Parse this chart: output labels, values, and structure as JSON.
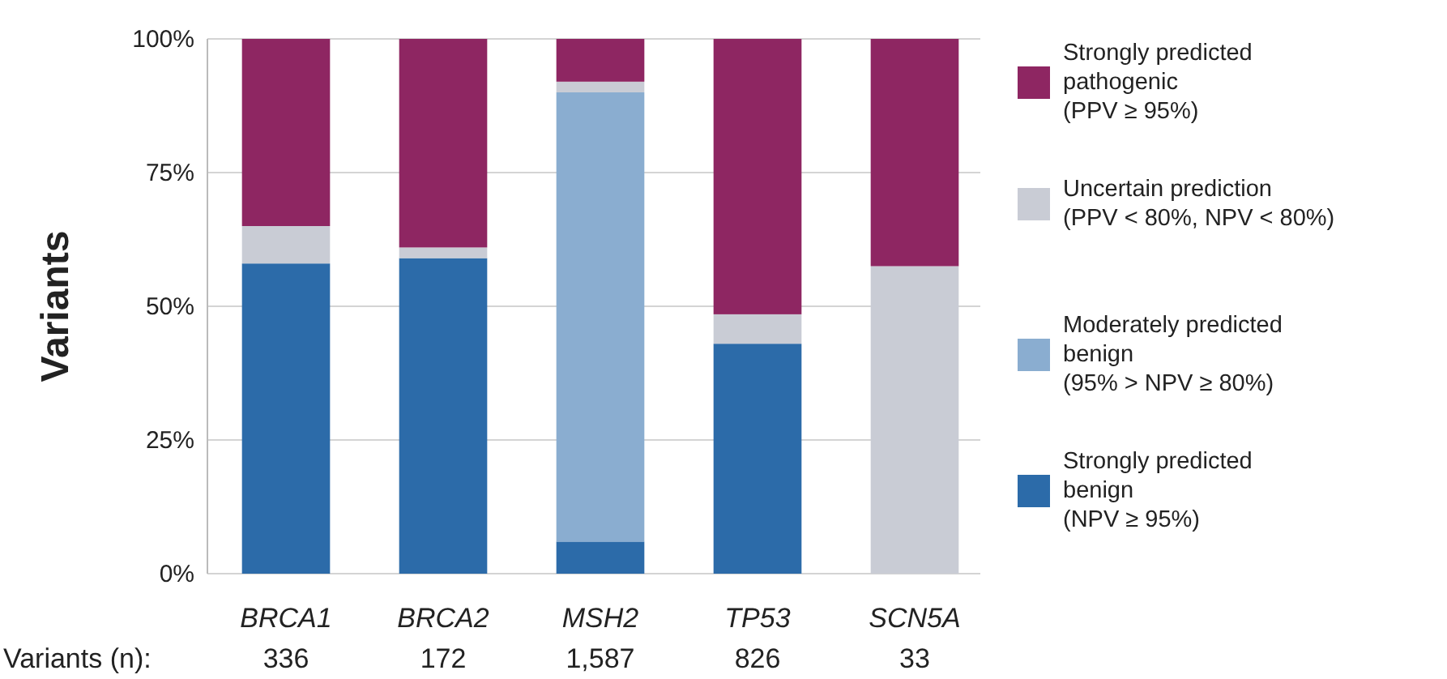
{
  "chart_data": {
    "type": "bar",
    "stacked": true,
    "ylabel": "Variants",
    "categories": [
      "BRCA1",
      "BRCA2",
      "MSH2",
      "TP53",
      "SCN5A"
    ],
    "series": [
      {
        "name": "Strongly predicted benign (NPV ≥ 95%)",
        "color": "#2c6ba9",
        "values": [
          58,
          59,
          6,
          43,
          0
        ]
      },
      {
        "name": "Moderately predicted benign (95% > NPV ≥ 80%)",
        "color": "#8aadd0",
        "values": [
          0,
          0,
          84,
          0,
          0
        ]
      },
      {
        "name": "Uncertain prediction (PPV < 80%, NPV < 80%)",
        "color": "#c9ccd5",
        "values": [
          7,
          2,
          2,
          5.5,
          57.5
        ]
      },
      {
        "name": "Strongly predicted pathogenic (PPV ≥ 95%)",
        "color": "#8e2662",
        "values": [
          35,
          39,
          8,
          51.5,
          42.5
        ]
      }
    ],
    "ylim": [
      0,
      100
    ],
    "yticks": [
      {
        "value": 0,
        "label": "0%"
      },
      {
        "value": 25,
        "label": "25%"
      },
      {
        "value": 50,
        "label": "50%"
      },
      {
        "value": 75,
        "label": "75%"
      },
      {
        "value": 100,
        "label": "100%"
      }
    ],
    "grid": "y",
    "legend": "right",
    "annotations": [
      "Variants (n):",
      "336",
      "172",
      "1,587",
      "826",
      "33"
    ]
  }
}
